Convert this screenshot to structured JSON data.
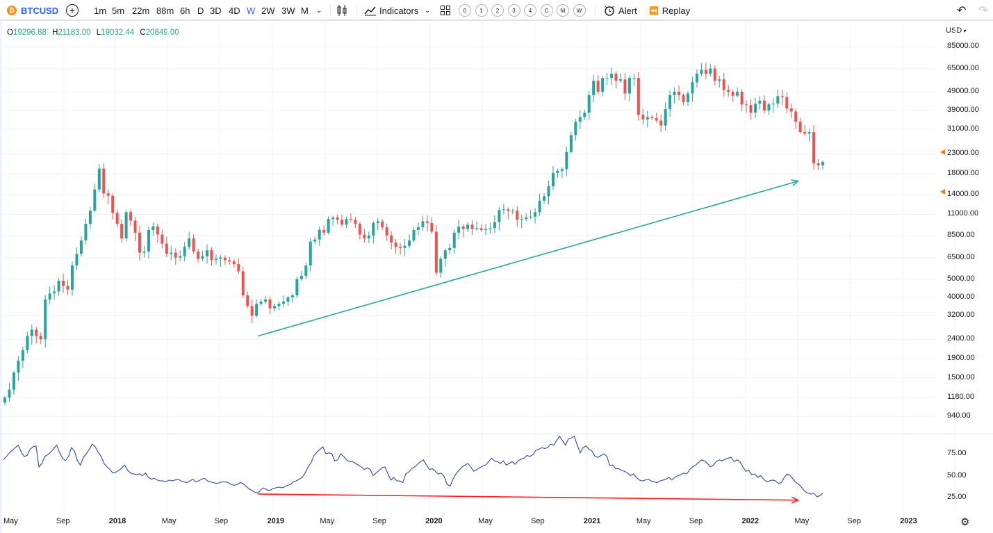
{
  "toolbar": {
    "symbol": "BTCUSD",
    "intervals": [
      "1m",
      "5m",
      "22m",
      "88m",
      "6h",
      "D",
      "3D",
      "4D",
      "W",
      "2W",
      "3W",
      "M"
    ],
    "active_interval": "W",
    "indicators_label": "Indicators",
    "layout_slots": [
      "0",
      "1",
      "2",
      "3",
      "4",
      "C",
      "M",
      "W"
    ],
    "alert_label": "Alert",
    "replay_label": "Replay"
  },
  "legend": {
    "open_label": "O",
    "open": "19296.88",
    "high_label": "H",
    "high": "21183.00",
    "low_label": "L",
    "low": "19032.44",
    "close_label": "C",
    "close": "20849.00"
  },
  "currency": "USD",
  "colors": {
    "up": "#26a69a",
    "down": "#ef5350",
    "trend_up": "#26a69a",
    "trend_down": "#ff1e1e",
    "rsi": "#2a4b9b",
    "accent": "#2962ff"
  },
  "chart_data": [
    {
      "type": "candlestick",
      "title": "",
      "price_scale": "log",
      "y_ticks": [
        "85000.00",
        "65000.00",
        "49000.00",
        "39000.00",
        "31000.00",
        "23000.00",
        "18000.00",
        "14000.00",
        "11000.00",
        "8500.00",
        "6500.00",
        "5000.00",
        "4000.00",
        "3200.00",
        "2400.00",
        "1900.00",
        "1500.00",
        "1180.00",
        "940.00"
      ],
      "x_ticks": [
        "May",
        "Sep",
        "2018",
        "May",
        "Sep",
        "2019",
        "May",
        "Sep",
        "2020",
        "May",
        "Sep",
        "2021",
        "May",
        "Sep",
        "2022",
        "May",
        "Sep",
        "2023"
      ],
      "trendline": {
        "from": {
          "date": "2018-12",
          "price": 2500
        },
        "to": {
          "date": "2022-06",
          "price": 16500
        },
        "color": "#26a69a"
      },
      "weekly_closes": [
        1180,
        1300,
        1600,
        1850,
        2100,
        2500,
        2700,
        2500,
        2400,
        3900,
        4200,
        4300,
        4900,
        4600,
        4400,
        5900,
        6800,
        8000,
        9800,
        11500,
        14900,
        19200,
        14200,
        13800,
        11200,
        9800,
        8200,
        11300,
        10200,
        8800,
        6900,
        7000,
        9100,
        9500,
        8600,
        7700,
        6800,
        6900,
        6500,
        6600,
        7400,
        8200,
        7000,
        6400,
        6600,
        7100,
        6300,
        6400,
        6500,
        6300,
        6200,
        6000,
        5500,
        4100,
        3600,
        3200,
        3700,
        3800,
        3900,
        3500,
        3600,
        3700,
        3800,
        4000,
        4100,
        5000,
        5200,
        5900,
        7900,
        8100,
        9100,
        8800,
        10400,
        10600,
        10300,
        9700,
        10400,
        10300,
        9800,
        8600,
        8200,
        8500,
        9900,
        10100,
        9400,
        8500,
        7800,
        7400,
        7300,
        7500,
        8000,
        9100,
        9400,
        10100,
        9900,
        8900,
        5400,
        6400,
        7100,
        7300,
        8800,
        9500,
        9200,
        9700,
        9200,
        9300,
        9100,
        9200,
        9300,
        10000,
        11600,
        11700,
        11500,
        11500,
        10300,
        10400,
        10600,
        10700,
        11300,
        13000,
        13700,
        15500,
        18200,
        18700,
        19100,
        23500,
        28900,
        34000,
        36000,
        38000,
        47000,
        56000,
        49000,
        58000,
        58000,
        61000,
        56000,
        57000,
        48000,
        58000,
        58000,
        37000,
        35000,
        36000,
        35500,
        34500,
        32500,
        39700,
        47000,
        49000,
        47000,
        43200,
        48000,
        55000,
        61000,
        64000,
        61000,
        65000,
        56000,
        57000,
        50200,
        49000,
        46700,
        49000,
        42000,
        41700,
        38000,
        42400,
        44000,
        39000,
        42000,
        42400,
        46500,
        46000,
        40000,
        38500,
        34000,
        30000,
        29400,
        30000,
        20500,
        20000,
        20850
      ],
      "last_candle": {
        "open": 19296.88,
        "high": 21183.0,
        "low": 19032.44,
        "close": 20849.0
      }
    },
    {
      "type": "line",
      "title": "",
      "y_ticks": [
        "75.00",
        "50.00",
        "25.00"
      ],
      "ylim": [
        15,
        100
      ],
      "trendline": {
        "from": {
          "date": "2018-12",
          "value": 29
        },
        "to": {
          "date": "2022-06",
          "value": 22
        },
        "color": "#ff1e1e"
      },
      "values": [
        68,
        72,
        76,
        79,
        82,
        85,
        77,
        72,
        73,
        80,
        83,
        84,
        60,
        64,
        72,
        74,
        77,
        81,
        85,
        76,
        70,
        67,
        72,
        82,
        78,
        67,
        62,
        71,
        75,
        80,
        86,
        83,
        77,
        72,
        64,
        60,
        57,
        53,
        54,
        56,
        59,
        62,
        56,
        53,
        52,
        51,
        52,
        50,
        53,
        48,
        46,
        47,
        45,
        44,
        44,
        43,
        45,
        44,
        45,
        46,
        44,
        43,
        42,
        44,
        46,
        43,
        44,
        46,
        47,
        44,
        43,
        42,
        41,
        42,
        43,
        43,
        42,
        40,
        39,
        40,
        42,
        41,
        38,
        35,
        33,
        31,
        30,
        34,
        36,
        34,
        33,
        35,
        36,
        37,
        36,
        37,
        39,
        40,
        43,
        44,
        46,
        48,
        53,
        60,
        65,
        73,
        77,
        80,
        83,
        75,
        76,
        75,
        67,
        68,
        75,
        72,
        68,
        66,
        66,
        64,
        62,
        60,
        57,
        59,
        57,
        50,
        53,
        56,
        59,
        60,
        52,
        45,
        48,
        44,
        44,
        42,
        52,
        54,
        58,
        60,
        63,
        66,
        68,
        62,
        57,
        58,
        55,
        52,
        53,
        49,
        40,
        38,
        46,
        52,
        56,
        60,
        62,
        64,
        60,
        55,
        57,
        59,
        61,
        62,
        66,
        70,
        67,
        66,
        64,
        67,
        62,
        64,
        66,
        63,
        67,
        69,
        70,
        73,
        72,
        74,
        79,
        80,
        82,
        81,
        82,
        86,
        85,
        90,
        95,
        90,
        85,
        92,
        93,
        95,
        85,
        76,
        82,
        84,
        80,
        78,
        72,
        71,
        73,
        75,
        72,
        62,
        62,
        58,
        58,
        56,
        55,
        53,
        50,
        52,
        48,
        45,
        44,
        45,
        46,
        44,
        43,
        42,
        44,
        45,
        46,
        48,
        45,
        48,
        50,
        51,
        53,
        52,
        57,
        60,
        62,
        65,
        68,
        67,
        64,
        60,
        62,
        66,
        68,
        67,
        69,
        70,
        71,
        66,
        68,
        66,
        60,
        55,
        56,
        51,
        52,
        48,
        50,
        46,
        43,
        44,
        45,
        44,
        41,
        42,
        48,
        52,
        50,
        46,
        42,
        40,
        36,
        32,
        30,
        29,
        30,
        26,
        27,
        30
      ]
    }
  ],
  "price_markers": [
    "23500",
    "14500"
  ]
}
